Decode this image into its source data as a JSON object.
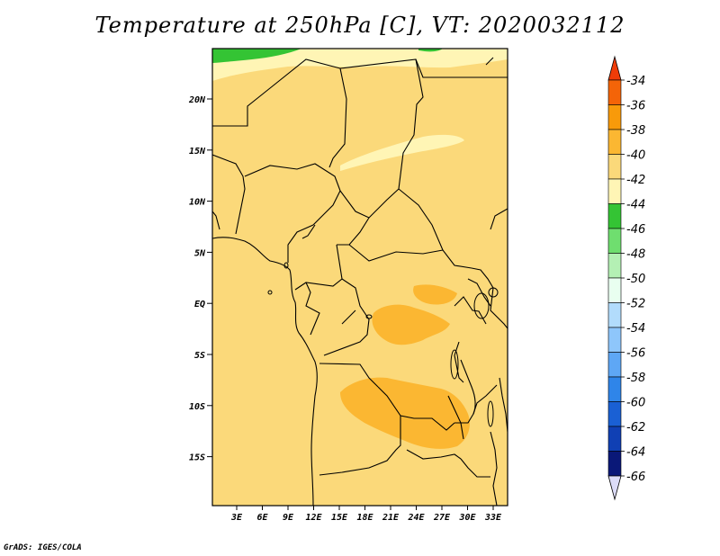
{
  "title": "Temperature at 250hPa [C], VT: 2020032112",
  "footer": "GrADS: IGES/COLA",
  "lat_labels": [
    "20N",
    "15N",
    "10N",
    "5N",
    "EQ",
    "5S",
    "10S",
    "15S"
  ],
  "lon_labels": [
    "3E",
    "6E",
    "9E",
    "12E",
    "15E",
    "18E",
    "21E",
    "24E",
    "27E",
    "30E",
    "33E"
  ],
  "colorbar": {
    "labels": [
      "-34",
      "-36",
      "-38",
      "-40",
      "-42",
      "-44",
      "-46",
      "-48",
      "-50",
      "-52",
      "-54",
      "-56",
      "-58",
      "-60",
      "-62",
      "-64",
      "-66"
    ],
    "colors": [
      "#f03c08",
      "#f46408",
      "#f89a0a",
      "#fbb732",
      "#fbd97a",
      "#fff5b5",
      "#34c434",
      "#6fde6f",
      "#b4f0b4",
      "#e9fff0",
      "#b2dcfc",
      "#8ec6fb",
      "#5ea7f5",
      "#2f85e9",
      "#1a60d4",
      "#1040b4",
      "#0a1878",
      "#dcdcf8"
    ]
  },
  "regions": {
    "background_level": "-40",
    "warm_patches_level": "-38",
    "cool_patches_level": "-42",
    "cold_patch_level": "-44"
  }
}
